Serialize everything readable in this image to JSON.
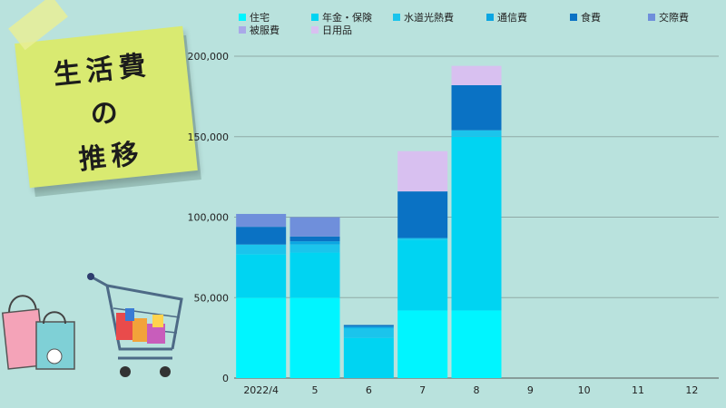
{
  "note": {
    "line1": "生活費",
    "line2": "の",
    "line3": "推移"
  },
  "colors": {
    "background": "#b9e2dd",
    "note": "#d9ea71"
  },
  "chart_data": {
    "type": "bar",
    "stacked": true,
    "categories": [
      "2022/4",
      "5",
      "6",
      "7",
      "8",
      "9",
      "10",
      "11",
      "12"
    ],
    "ylim": [
      0,
      200000
    ],
    "yticks": [
      "0",
      "50,000",
      "100,000",
      "150,000",
      "200,000"
    ],
    "ytick_values": [
      0,
      50000,
      100000,
      150000,
      200000
    ],
    "grid": true,
    "legend_position": "top",
    "series": [
      {
        "name": "住宅",
        "color": "#00f5ff",
        "values": [
          50000,
          50000,
          0,
          42000,
          42000,
          null,
          null,
          null,
          null
        ]
      },
      {
        "name": "年金・保険",
        "color": "#00d4f2",
        "values": [
          27000,
          28000,
          25000,
          44000,
          108000,
          null,
          null,
          null,
          null
        ]
      },
      {
        "name": "水道光熱費",
        "color": "#1bc4ec",
        "values": [
          6000,
          5000,
          6000,
          1000,
          4000,
          null,
          null,
          null,
          null
        ]
      },
      {
        "name": "通信費",
        "color": "#0ba6e2",
        "values": [
          0,
          2000,
          1000,
          0,
          0,
          null,
          null,
          null,
          null
        ]
      },
      {
        "name": "食費",
        "color": "#0a72c4",
        "values": [
          11000,
          3000,
          1000,
          29000,
          28000,
          null,
          null,
          null,
          null
        ]
      },
      {
        "name": "交際費",
        "color": "#6f8fdb",
        "values": [
          8000,
          12000,
          0,
          0,
          0,
          null,
          null,
          null,
          null
        ]
      },
      {
        "name": "被服費",
        "color": "#a9a9e8",
        "values": [
          0,
          0,
          0,
          0,
          0,
          null,
          null,
          null,
          null
        ]
      },
      {
        "name": "日用品",
        "color": "#d8c0f0",
        "values": [
          0,
          0,
          0,
          25000,
          12000,
          null,
          null,
          null,
          null
        ]
      }
    ]
  }
}
